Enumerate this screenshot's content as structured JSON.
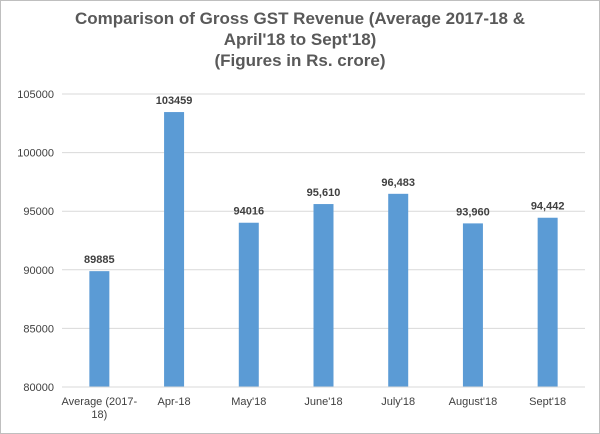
{
  "chart_data": {
    "type": "bar",
    "title_lines": [
      "Comparison of Gross GST Revenue (Average 2017-18 &",
      "April'18 to Sept'18)",
      "(Figures in Rs. crore)"
    ],
    "categories": [
      [
        "Average (2017-",
        "18)"
      ],
      [
        "Apr-18"
      ],
      [
        "May'18"
      ],
      [
        "June'18"
      ],
      [
        "July'18"
      ],
      [
        "August'18"
      ],
      [
        "Sept'18"
      ]
    ],
    "values": [
      89885,
      103459,
      94016,
      95610,
      96483,
      93960,
      94442
    ],
    "data_labels": [
      "89885",
      "103459",
      "94016",
      "95,610",
      "96,483",
      "93,960",
      "94,442"
    ],
    "yticks": [
      "80000",
      "85000",
      "90000",
      "95000",
      "100000",
      "105000"
    ],
    "ylim": [
      80000,
      105000
    ],
    "xlabel": "",
    "ylabel": "",
    "grid": true,
    "bar_color": "#5b9bd5",
    "grid_color": "#d9d9d9"
  }
}
